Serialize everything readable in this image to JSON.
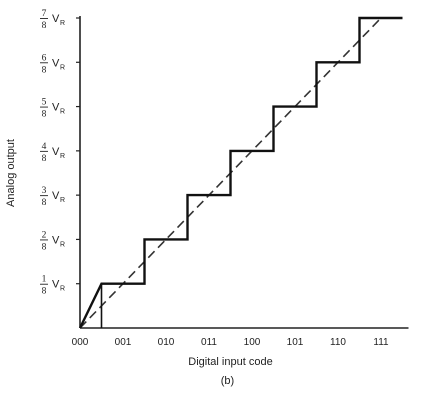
{
  "chart_data": {
    "type": "line",
    "xlabel": "Digital input code",
    "ylabel": "Analog output",
    "panel_label": "(b)",
    "x_categories": [
      "000",
      "001",
      "010",
      "011",
      "100",
      "101",
      "110",
      "111"
    ],
    "y_ticks": [
      {
        "num": "1",
        "den": "8",
        "unit": "V",
        "sub": "R",
        "value": 0.125
      },
      {
        "num": "2",
        "den": "8",
        "unit": "V",
        "sub": "R",
        "value": 0.25
      },
      {
        "num": "3",
        "den": "8",
        "unit": "V",
        "sub": "R",
        "value": 0.375
      },
      {
        "num": "4",
        "den": "8",
        "unit": "V",
        "sub": "R",
        "value": 0.5
      },
      {
        "num": "5",
        "den": "8",
        "unit": "V",
        "sub": "R",
        "value": 0.625
      },
      {
        "num": "6",
        "den": "8",
        "unit": "V",
        "sub": "R",
        "value": 0.75
      },
      {
        "num": "7",
        "den": "8",
        "unit": "V",
        "sub": "R",
        "value": 0.875
      }
    ],
    "staircase": {
      "style": "solid",
      "points": [
        [
          0,
          0
        ],
        [
          0.5,
          0.125
        ],
        [
          1.5,
          0.125
        ],
        [
          1.5,
          0.25
        ],
        [
          2.5,
          0.25
        ],
        [
          2.5,
          0.375
        ],
        [
          3.5,
          0.375
        ],
        [
          3.5,
          0.5
        ],
        [
          4.5,
          0.5
        ],
        [
          4.5,
          0.625
        ],
        [
          5.5,
          0.625
        ],
        [
          5.5,
          0.75
        ],
        [
          6.5,
          0.75
        ],
        [
          6.5,
          0.875
        ],
        [
          7.5,
          0.875
        ]
      ]
    },
    "ideal_line": {
      "style": "dashed",
      "from": [
        0,
        0
      ],
      "to": [
        7,
        0.875
      ]
    },
    "xlim": [
      0,
      7.5
    ],
    "ylim": [
      0,
      0.875
    ],
    "grid": false
  }
}
